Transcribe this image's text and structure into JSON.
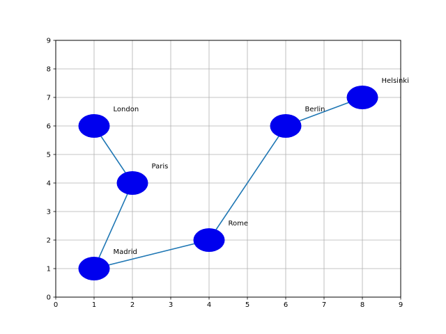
{
  "chart_data": {
    "type": "scatter",
    "title": "",
    "xlabel": "",
    "ylabel": "",
    "xlim": [
      0,
      9
    ],
    "ylim": [
      0,
      9
    ],
    "x_ticks": [
      0,
      1,
      2,
      3,
      4,
      5,
      6,
      7,
      8,
      9
    ],
    "y_ticks": [
      0,
      1,
      2,
      3,
      4,
      5,
      6,
      7,
      8,
      9
    ],
    "grid": true,
    "points": [
      {
        "label": "London",
        "x": 1,
        "y": 6
      },
      {
        "label": "Paris",
        "x": 2,
        "y": 4
      },
      {
        "label": "Madrid",
        "x": 1,
        "y": 1
      },
      {
        "label": "Rome",
        "x": 4,
        "y": 2
      },
      {
        "label": "Berlin",
        "x": 6,
        "y": 6
      },
      {
        "label": "Helsinki",
        "x": 8,
        "y": 7
      }
    ],
    "route_order": [
      "London",
      "Paris",
      "Madrid",
      "Rome",
      "Berlin",
      "Helsinki"
    ],
    "colors": {
      "marker": "#0000ee",
      "line": "#1f77b4",
      "grid": "#b0b0b0",
      "axes": "#000000"
    }
  }
}
